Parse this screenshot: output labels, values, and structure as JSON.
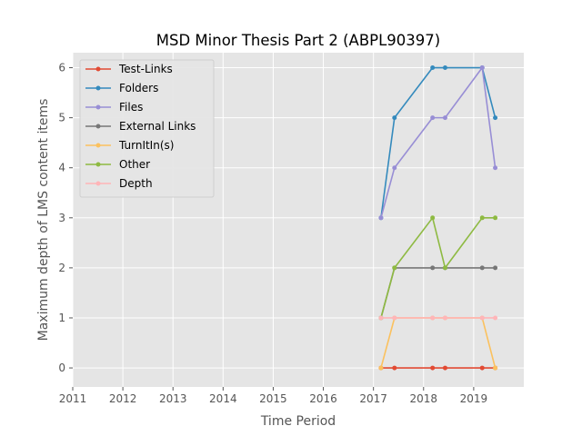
{
  "chart_data": {
    "type": "line",
    "title": "MSD Minor Thesis Part 2 (ABPL90397)",
    "xlabel": "Time Period",
    "ylabel": "Maximum depth of LMS content items",
    "xlim": [
      2011,
      2020
    ],
    "ylim": [
      -0.38,
      6.3
    ],
    "x_ticks": [
      "2011",
      "2012",
      "2013",
      "2014",
      "2015",
      "2016",
      "2017",
      "2018",
      "2019"
    ],
    "y_ticks": [
      "0",
      "1",
      "2",
      "3",
      "4",
      "5",
      "6"
    ],
    "grid": true,
    "legend_position": "top-left",
    "x": [
      2017.15,
      2017.42,
      2018.18,
      2018.43,
      2019.17,
      2019.43
    ],
    "series": [
      {
        "name": "Test-Links",
        "color": "#E24A33",
        "values": [
          0,
          0,
          0,
          0,
          0,
          0
        ]
      },
      {
        "name": "Folders",
        "color": "#348ABD",
        "values": [
          3,
          5,
          6,
          6,
          6,
          5
        ]
      },
      {
        "name": "Files",
        "color": "#988ED5",
        "values": [
          3,
          4,
          5,
          5,
          6,
          4
        ]
      },
      {
        "name": "External Links",
        "color": "#777777",
        "values": [
          1,
          2,
          2,
          2,
          2,
          2
        ]
      },
      {
        "name": "TurnItIn(s)",
        "color": "#FBC15E",
        "values": [
          0,
          1,
          1,
          1,
          1,
          0
        ]
      },
      {
        "name": "Other",
        "color": "#8EBA42",
        "values": [
          1,
          2,
          3,
          2,
          3,
          3
        ]
      },
      {
        "name": "Depth",
        "color": "#FFB5B8",
        "values": [
          1,
          1,
          1,
          1,
          1,
          1
        ]
      }
    ]
  }
}
